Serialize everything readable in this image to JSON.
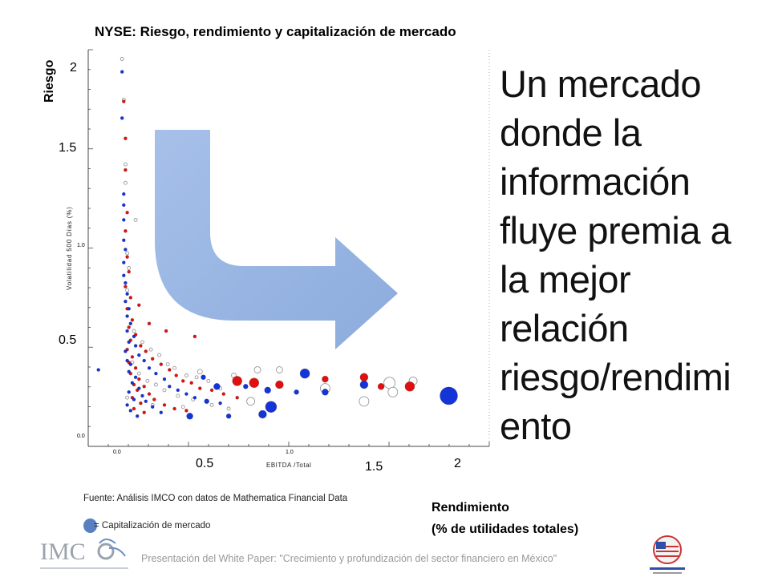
{
  "header": {
    "title": "NYSE: Riesgo, rendimiento y capitalización de mercado"
  },
  "axes": {
    "y_label": "Riesgo",
    "y_ticks": [
      "2",
      "1.5",
      "0.5"
    ],
    "x_ticks": [
      "0.5",
      "1.5",
      "2"
    ],
    "x_label_line1": "Rendimiento",
    "x_label_line2": "(% de utilidades totales)",
    "inner_y_label": "Volatilidad 500 Días (%)",
    "inner_x_label": "EBITDA /Total",
    "inner_y_ticks": [
      "1.0",
      "0.0"
    ],
    "inner_x_ticks": [
      "0.0",
      "1.0"
    ]
  },
  "headline": "Un mercado donde la información fluye premia a la mejor relación riesgo/rendimiento",
  "headline_lines": [
    "Un mercado",
    "donde la",
    "información",
    "fluye premia a",
    "la mejor",
    "relación",
    "riesgo/rendimi",
    "ento"
  ],
  "source": "Fuente: Análisis IMCO con datos de Mathematica Financial Data",
  "legend": {
    "text": "= Capitalización de mercado"
  },
  "footer": {
    "text": "Presentación del White Paper: \"Crecimiento y profundización del sector financiero en México\""
  },
  "colors": {
    "red": "#e01010",
    "blue": "#1434d8",
    "white": "#ffffff",
    "arrow": "#8eaee0",
    "legend": "#5a7fc0"
  },
  "chart_data": {
    "type": "scatter",
    "title": "NYSE: Riesgo, rendimiento y capitalización de mercado",
    "xlabel": "Rendimiento (% de utilidades totales)",
    "ylabel": "Riesgo",
    "xlim": [
      -0.1,
      2.1
    ],
    "ylim": [
      0,
      2.2
    ],
    "grid": false,
    "size_encoding": "Capitalización de mercado",
    "series": [
      {
        "color": "blue",
        "points": [
          [
            0.02,
            1.98
          ],
          [
            0.02,
            1.73
          ],
          [
            0.03,
            1.32
          ],
          [
            0.03,
            1.26
          ],
          [
            0.03,
            1.18
          ],
          [
            0.03,
            1.07
          ],
          [
            0.04,
            1.02
          ],
          [
            0.03,
            0.95
          ],
          [
            0.03,
            0.88
          ],
          [
            0.04,
            0.84
          ],
          [
            0.05,
            0.78
          ],
          [
            0.04,
            0.74
          ],
          [
            0.06,
            0.7
          ],
          [
            0.05,
            0.66
          ],
          [
            0.07,
            0.62
          ],
          [
            0.05,
            0.58
          ],
          [
            0.09,
            0.55
          ],
          [
            0.06,
            0.52
          ],
          [
            0.1,
            0.5
          ],
          [
            0.04,
            0.47
          ],
          [
            0.12,
            0.45
          ],
          [
            0.05,
            0.42
          ],
          [
            0.15,
            0.42
          ],
          [
            0.07,
            0.4
          ],
          [
            0.18,
            0.38
          ],
          [
            0.06,
            0.36
          ],
          [
            0.22,
            0.35
          ],
          [
            0.1,
            0.33
          ],
          [
            0.27,
            0.32
          ],
          [
            0.08,
            0.3
          ],
          [
            0.3,
            0.28
          ],
          [
            0.12,
            0.27
          ],
          [
            0.35,
            0.26
          ],
          [
            0.06,
            0.25
          ],
          [
            0.4,
            0.24
          ],
          [
            0.14,
            0.23
          ],
          [
            0.45,
            0.22
          ],
          [
            0.09,
            0.21
          ],
          [
            0.52,
            0.2
          ],
          [
            0.16,
            0.2
          ],
          [
            0.6,
            0.19
          ],
          [
            0.05,
            0.18
          ],
          [
            0.2,
            0.17
          ],
          [
            0.07,
            0.15
          ],
          [
            0.25,
            0.14
          ],
          [
            0.11,
            0.12
          ],
          [
            0.65,
            0.12
          ],
          [
            -0.12,
            0.37
          ],
          [
            0.42,
            0.12
          ],
          [
            0.85,
            0.13
          ],
          [
            0.9,
            0.17
          ],
          [
            0.58,
            0.28
          ],
          [
            0.5,
            0.33
          ],
          [
            0.75,
            0.28
          ],
          [
            0.88,
            0.26
          ],
          [
            1.05,
            0.25
          ],
          [
            1.1,
            0.35
          ],
          [
            1.45,
            0.29
          ],
          [
            1.22,
            0.25
          ],
          [
            1.95,
            0.23
          ]
        ],
        "sizes": [
          2,
          2,
          2,
          2,
          2,
          2,
          2,
          2,
          2,
          2,
          2,
          2,
          2,
          2,
          2,
          2,
          2,
          2,
          2,
          2,
          2,
          2,
          2,
          2,
          2,
          2,
          2,
          2,
          2,
          2,
          2,
          2,
          2,
          2,
          2,
          2,
          2,
          2,
          3,
          2,
          2,
          2,
          2,
          2,
          2,
          2,
          3,
          2,
          4,
          5,
          7,
          4,
          3,
          3,
          4,
          3,
          6,
          5,
          4,
          11
        ]
      },
      {
        "color": "red",
        "points": [
          [
            0.03,
            1.82
          ],
          [
            0.04,
            1.62
          ],
          [
            0.04,
            1.45
          ],
          [
            0.05,
            1.22
          ],
          [
            0.04,
            1.12
          ],
          [
            0.05,
            0.98
          ],
          [
            0.06,
            0.9
          ],
          [
            0.04,
            0.82
          ],
          [
            0.07,
            0.76
          ],
          [
            0.05,
            0.7
          ],
          [
            0.08,
            0.64
          ],
          [
            0.06,
            0.6
          ],
          [
            0.1,
            0.56
          ],
          [
            0.07,
            0.53
          ],
          [
            0.13,
            0.5
          ],
          [
            0.05,
            0.48
          ],
          [
            0.16,
            0.47
          ],
          [
            0.08,
            0.44
          ],
          [
            0.2,
            0.43
          ],
          [
            0.06,
            0.41
          ],
          [
            0.25,
            0.4
          ],
          [
            0.1,
            0.38
          ],
          [
            0.3,
            0.37
          ],
          [
            0.07,
            0.35
          ],
          [
            0.34,
            0.34
          ],
          [
            0.12,
            0.32
          ],
          [
            0.38,
            0.31
          ],
          [
            0.09,
            0.29
          ],
          [
            0.43,
            0.3
          ],
          [
            0.15,
            0.28
          ],
          [
            0.48,
            0.27
          ],
          [
            0.11,
            0.26
          ],
          [
            0.55,
            0.26
          ],
          [
            0.18,
            0.24
          ],
          [
            0.62,
            0.24
          ],
          [
            0.08,
            0.22
          ],
          [
            0.7,
            0.22
          ],
          [
            0.21,
            0.21
          ],
          [
            0.13,
            0.19
          ],
          [
            0.27,
            0.18
          ],
          [
            0.09,
            0.16
          ],
          [
            0.33,
            0.16
          ],
          [
            0.15,
            0.14
          ],
          [
            0.4,
            0.15
          ],
          [
            0.12,
            0.72
          ],
          [
            0.18,
            0.62
          ],
          [
            0.28,
            0.58
          ],
          [
            0.45,
            0.55
          ],
          [
            0.8,
            0.3
          ],
          [
            0.95,
            0.29
          ],
          [
            1.22,
            0.32
          ],
          [
            1.45,
            0.33
          ],
          [
            0.7,
            0.31
          ],
          [
            1.72,
            0.28
          ],
          [
            1.55,
            0.28
          ]
        ],
        "sizes": [
          2,
          2,
          2,
          2,
          2,
          2,
          2,
          2,
          2,
          2,
          2,
          2,
          2,
          2,
          2,
          2,
          2,
          2,
          2,
          2,
          2,
          2,
          2,
          2,
          2,
          2,
          2,
          2,
          2,
          2,
          2,
          2,
          2,
          2,
          2,
          2,
          2,
          2,
          2,
          2,
          2,
          2,
          2,
          2,
          2,
          2,
          2,
          2,
          6,
          5,
          4,
          5,
          6,
          6,
          4
        ]
      },
      {
        "color": "white",
        "points": [
          [
            0.02,
            2.05
          ],
          [
            0.03,
            1.83
          ],
          [
            0.04,
            1.48
          ],
          [
            0.04,
            1.38
          ],
          [
            0.1,
            1.18
          ],
          [
            0.05,
            1.0
          ],
          [
            0.06,
            0.92
          ],
          [
            0.05,
            0.8
          ],
          [
            0.09,
            0.58
          ],
          [
            0.14,
            0.52
          ],
          [
            0.19,
            0.48
          ],
          [
            0.24,
            0.45
          ],
          [
            0.08,
            0.41
          ],
          [
            0.29,
            0.4
          ],
          [
            0.33,
            0.38
          ],
          [
            0.12,
            0.35
          ],
          [
            0.4,
            0.34
          ],
          [
            0.17,
            0.31
          ],
          [
            0.46,
            0.33
          ],
          [
            0.22,
            0.29
          ],
          [
            0.53,
            0.31
          ],
          [
            0.27,
            0.26
          ],
          [
            0.6,
            0.27
          ],
          [
            0.35,
            0.23
          ],
          [
            0.44,
            0.21
          ],
          [
            0.55,
            0.18
          ],
          [
            0.65,
            0.16
          ],
          [
            0.05,
            0.22
          ],
          [
            0.2,
            0.18
          ],
          [
            0.38,
            0.17
          ],
          [
            0.68,
            0.34
          ],
          [
            0.78,
            0.2
          ],
          [
            0.95,
            0.37
          ],
          [
            1.22,
            0.27
          ],
          [
            1.45,
            0.2
          ],
          [
            1.6,
            0.3
          ],
          [
            1.62,
            0.25
          ],
          [
            1.74,
            0.31
          ],
          [
            0.82,
            0.37
          ],
          [
            0.48,
            0.36
          ]
        ],
        "sizes": [
          2,
          2,
          2,
          2,
          2,
          2,
          2,
          2,
          2,
          2,
          2,
          2,
          2,
          2,
          2,
          2,
          2,
          2,
          2,
          2,
          2,
          2,
          2,
          2,
          2,
          2,
          2,
          2,
          2,
          2,
          3,
          5,
          4,
          6,
          6,
          7,
          6,
          5,
          4,
          3
        ]
      }
    ]
  }
}
